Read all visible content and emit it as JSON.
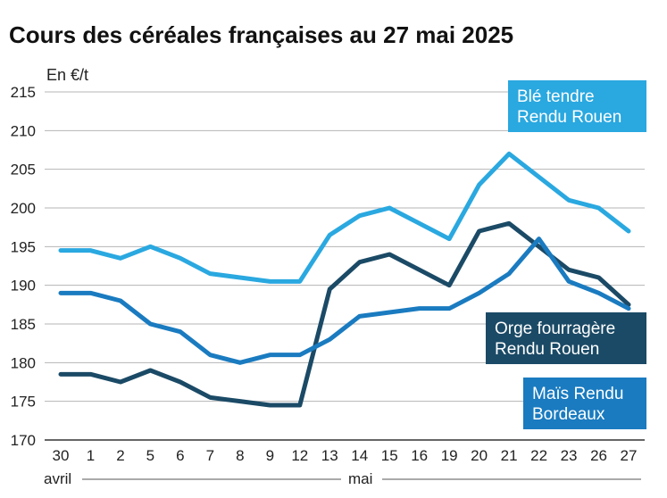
{
  "chart_data": {
    "type": "line",
    "title": "Cours des céréales françaises au 27 mai 2025",
    "ylabel": "En €/t",
    "ylim": [
      170,
      215
    ],
    "yticks": [
      170,
      175,
      180,
      185,
      190,
      195,
      200,
      205,
      210,
      215
    ],
    "categories": [
      "30",
      "1",
      "2",
      "5",
      "6",
      "7",
      "8",
      "9",
      "12",
      "13",
      "14",
      "15",
      "16",
      "19",
      "20",
      "21",
      "22",
      "23",
      "26",
      "27"
    ],
    "month_labels": [
      "avril",
      "mai"
    ],
    "grid": "horizontal",
    "series": [
      {
        "name": "Blé tendre Rendu Rouen",
        "label_lines": [
          "Blé tendre",
          "Rendu Rouen"
        ],
        "color": "#2aa8e0",
        "values": [
          194.5,
          194.5,
          193.5,
          195,
          193.5,
          191.5,
          191,
          190.5,
          190.5,
          196.5,
          199,
          200,
          198,
          196,
          203,
          207,
          204,
          201,
          200,
          197
        ]
      },
      {
        "name": "Orge fourragère Rendu Rouen",
        "label_lines": [
          "Orge fourragère",
          "Rendu Rouen"
        ],
        "color": "#1b4a66",
        "values": [
          178.5,
          178.5,
          177.5,
          179,
          177.5,
          175.5,
          175,
          174.5,
          174.5,
          189.5,
          193,
          194,
          192,
          190,
          197,
          198,
          195,
          192,
          191,
          187.5
        ]
      },
      {
        "name": "Maïs Rendu Bordeaux",
        "label_lines": [
          "Maïs Rendu",
          "Bordeaux"
        ],
        "color": "#1a7bc0",
        "values": [
          189,
          189,
          188,
          185,
          184,
          181,
          180,
          181,
          181,
          183,
          186,
          186.5,
          187,
          187,
          189,
          191.5,
          196,
          190.5,
          189,
          187
        ]
      }
    ]
  }
}
